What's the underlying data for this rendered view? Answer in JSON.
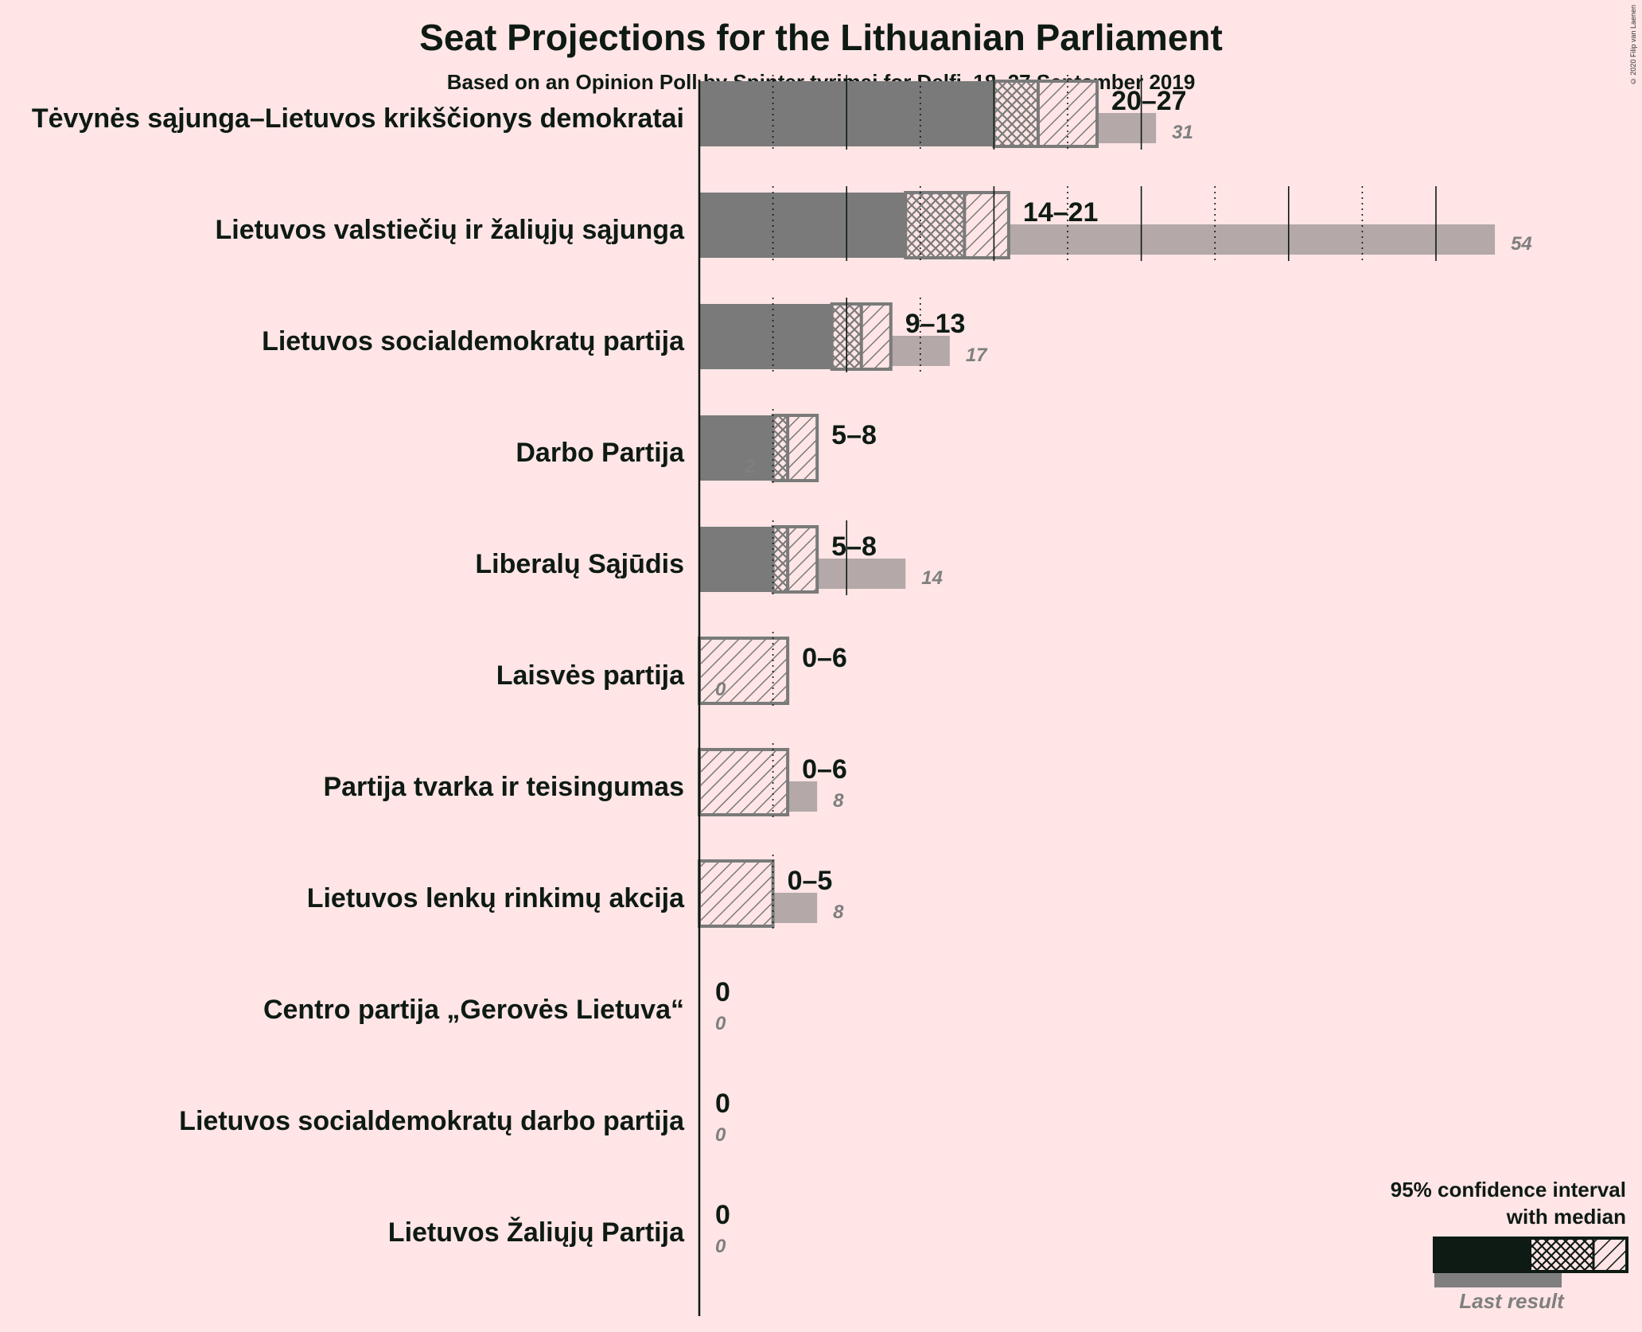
{
  "chart_data": {
    "type": "bar",
    "title": "Seat Projections for the Lithuanian Parliament",
    "subtitle": "Based on an Opinion Poll by Spinter tyrimai for Delfi, 18–27 September 2019",
    "copyright": "© 2020 Filip van Laenen",
    "categories": [
      "Tėvynės sąjunga–Lietuvos krikščionys demokratai",
      "Lietuvos valstiečių ir žaliųjų sąjunga",
      "Lietuvos socialdemokratų partija",
      "Darbo Partija",
      "Liberalų Sąjūdis",
      "Laisvės partija",
      "Partija tvarka ir teisingumas",
      "Lietuvos lenkų rinkimų akcija",
      "Centro partija „Gerovės Lietuva“",
      "Lietuvos socialdemokratų darbo partija",
      "Lietuvos Žaliųjų Partija"
    ],
    "series": [
      {
        "name": "95% confidence interval with median",
        "low": [
          20,
          14,
          9,
          5,
          5,
          0,
          0,
          0,
          0,
          0,
          0
        ],
        "median": [
          23,
          18,
          11,
          6,
          6,
          0,
          0,
          0,
          0,
          0,
          0
        ],
        "high": [
          27,
          21,
          13,
          8,
          8,
          6,
          6,
          5,
          0,
          0,
          0
        ],
        "labels": [
          "20–27",
          "14–21",
          "9–13",
          "5–8",
          "5–8",
          "0–6",
          "0–6",
          "0–5",
          "0",
          "0",
          "0"
        ]
      },
      {
        "name": "Last result",
        "values": [
          31,
          54,
          17,
          2,
          14,
          0,
          8,
          8,
          0,
          0,
          0
        ]
      }
    ],
    "xlim": [
      0,
      54
    ],
    "grid": "ticks every 5 seats (solid every 10, dotted at 5s)",
    "legend": {
      "title_line1": "95% confidence interval",
      "title_line2": "with median",
      "last_result": "Last result"
    },
    "colors": {
      "background": "#FFE5E5",
      "bar": "#7A7A7A",
      "last_result": "#B4A8A8",
      "legend_bar": "#0E1A14",
      "text": "#0E1A14"
    }
  }
}
